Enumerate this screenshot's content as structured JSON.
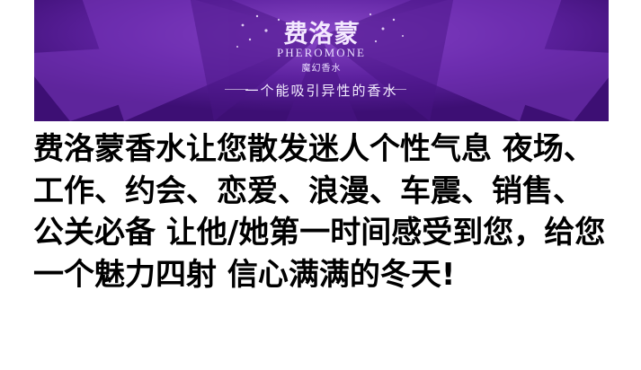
{
  "banner": {
    "brand_cn": "费洛蒙",
    "brand_en": "PHEROMONE",
    "brand_sub": "魔幻香水",
    "tagline": "一个能吸引异性的香水"
  },
  "headline": "费洛蒙香水让您散发迷人个性气息 夜场、工作、约会、恋爱、浪漫、车震、销售、公关必备 让他/她第一时间感受到您，给您一个魅力四射 信心满满的冬天!",
  "colors": {
    "banner_bg": "#5a1f96",
    "text": "#000000"
  }
}
